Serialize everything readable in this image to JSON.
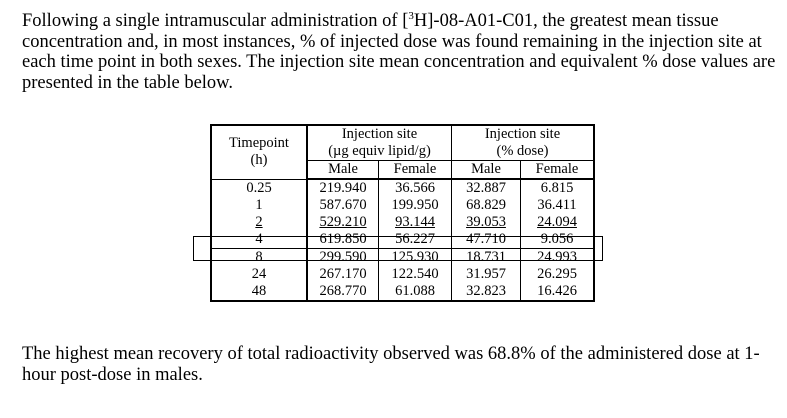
{
  "intro": {
    "before_sup": "Following a single intramuscular administration of [",
    "sup": "3",
    "after_sup": "H]-08-A01-C01, the greatest mean tissue concentration and, in most instances, % of injected dose was found remaining in the injection site at each time point in both sexes.  The injection site mean concentration and equivalent % dose values are presented in the table below."
  },
  "table": {
    "timepoint_header": "Timepoint",
    "timepoint_unit": "(h)",
    "group1_title": "Injection site",
    "group1_unit": "(µg equiv lipid/g)",
    "group2_title": "Injection site",
    "group2_unit": "(% dose)",
    "subheaders": [
      "Male",
      "Female",
      "Male",
      "Female"
    ],
    "rows": [
      {
        "tp": "0.25",
        "v": [
          "219.940",
          "36.566",
          "32.887",
          "6.815"
        ]
      },
      {
        "tp": "1",
        "v": [
          "587.670",
          "199.950",
          "68.829",
          "36.411"
        ]
      },
      {
        "tp": "2",
        "v": [
          "529.210",
          "93.144",
          "39.053",
          "24.094"
        ]
      },
      {
        "tp": "4",
        "v": [
          "619.850",
          "56.227",
          "47.710",
          "9.056"
        ]
      },
      {
        "tp": "8",
        "v": [
          "299.590",
          "125.930",
          "18.731",
          "24.993"
        ]
      },
      {
        "tp": "24",
        "v": [
          "267.170",
          "122.540",
          "31.957",
          "26.295"
        ]
      },
      {
        "tp": "48",
        "v": [
          "268.770",
          "61.088",
          "32.823",
          "16.426"
        ]
      }
    ]
  },
  "summary": "The highest mean recovery of total radioactivity observed was 68.8% of the administered dose at 1-hour post-dose in males."
}
